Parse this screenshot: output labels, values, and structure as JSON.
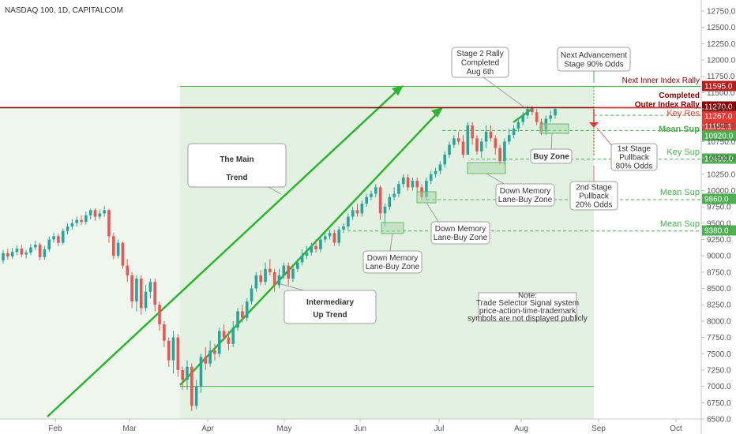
{
  "header": {
    "symbol": "NASDAQ 100, 1D, CAPITALCOM"
  },
  "chart_data": {
    "type": "candlestick",
    "title": "NASDAQ 100, 1D, CAPITALCOM",
    "ylim": [
      6500,
      12750
    ],
    "y_ticks": [
      "12750.0",
      "12500.0",
      "12250.0",
      "12000.0",
      "11750.0",
      "11500.0",
      "11250.0",
      "11000.0",
      "10750.0",
      "10500.0",
      "10250.0",
      "10000.0",
      "9750.0",
      "9500.0",
      "9250.0",
      "9000.0",
      "8750.0",
      "8500.0",
      "8250.0",
      "8000.0",
      "7750.0",
      "7500.0",
      "7250.0",
      "7000.0",
      "6750.0",
      "6500.0"
    ],
    "x_labels": [
      "Feb",
      "Mar",
      "Apr",
      "May",
      "Jun",
      "Jul",
      "Aug",
      "Sep",
      "Oct"
    ],
    "colors": {
      "up": "#26a69a",
      "down": "#ef5350",
      "trend": "#2db52d",
      "level": "#4caf50",
      "resistance": "#8b0000",
      "key_res": "#e53935"
    },
    "candles": [
      {
        "o": 8930,
        "c": 9040,
        "h": 9090,
        "l": 8880
      },
      {
        "o": 9040,
        "c": 8990,
        "h": 9110,
        "l": 8940
      },
      {
        "o": 8990,
        "c": 9060,
        "h": 9120,
        "l": 8950
      },
      {
        "o": 9060,
        "c": 9110,
        "h": 9160,
        "l": 9010
      },
      {
        "o": 9110,
        "c": 9020,
        "h": 9170,
        "l": 8980
      },
      {
        "o": 9020,
        "c": 9050,
        "h": 9090,
        "l": 8960
      },
      {
        "o": 9050,
        "c": 9130,
        "h": 9180,
        "l": 9010
      },
      {
        "o": 9130,
        "c": 9170,
        "h": 9230,
        "l": 9090
      },
      {
        "o": 9170,
        "c": 8980,
        "h": 9200,
        "l": 8930
      },
      {
        "o": 8980,
        "c": 9100,
        "h": 9150,
        "l": 8940
      },
      {
        "o": 9100,
        "c": 9250,
        "h": 9300,
        "l": 9060
      },
      {
        "o": 9250,
        "c": 9300,
        "h": 9350,
        "l": 9200
      },
      {
        "o": 9300,
        "c": 9200,
        "h": 9340,
        "l": 9150
      },
      {
        "o": 9200,
        "c": 9380,
        "h": 9420,
        "l": 9170
      },
      {
        "o": 9380,
        "c": 9450,
        "h": 9500,
        "l": 9330
      },
      {
        "o": 9450,
        "c": 9500,
        "h": 9560,
        "l": 9400
      },
      {
        "o": 9500,
        "c": 9550,
        "h": 9600,
        "l": 9450
      },
      {
        "o": 9550,
        "c": 9520,
        "h": 9620,
        "l": 9470
      },
      {
        "o": 9520,
        "c": 9620,
        "h": 9680,
        "l": 9480
      },
      {
        "o": 9620,
        "c": 9700,
        "h": 9720,
        "l": 9560
      },
      {
        "o": 9700,
        "c": 9600,
        "h": 9730,
        "l": 9540
      },
      {
        "o": 9600,
        "c": 9650,
        "h": 9710,
        "l": 9560
      },
      {
        "o": 9650,
        "c": 9700,
        "h": 9760,
        "l": 9600
      },
      {
        "o": 9700,
        "c": 9300,
        "h": 9720,
        "l": 9200
      },
      {
        "o": 9300,
        "c": 9000,
        "h": 9350,
        "l": 8950
      },
      {
        "o": 9000,
        "c": 9200,
        "h": 9250,
        "l": 8960
      },
      {
        "o": 9200,
        "c": 8850,
        "h": 9220,
        "l": 8800
      },
      {
        "o": 8850,
        "c": 8700,
        "h": 8950,
        "l": 8600
      },
      {
        "o": 8700,
        "c": 8300,
        "h": 8750,
        "l": 8200
      },
      {
        "o": 8300,
        "c": 8650,
        "h": 8700,
        "l": 8150
      },
      {
        "o": 8650,
        "c": 8200,
        "h": 8700,
        "l": 8100
      },
      {
        "o": 8200,
        "c": 8450,
        "h": 8550,
        "l": 8150
      },
      {
        "o": 8450,
        "c": 8600,
        "h": 8650,
        "l": 8350
      },
      {
        "o": 8600,
        "c": 8250,
        "h": 8650,
        "l": 8150
      },
      {
        "o": 8250,
        "c": 7950,
        "h": 8300,
        "l": 7850
      },
      {
        "o": 7950,
        "c": 7700,
        "h": 8000,
        "l": 7600
      },
      {
        "o": 7700,
        "c": 7400,
        "h": 7750,
        "l": 7300
      },
      {
        "o": 7400,
        "c": 7750,
        "h": 7850,
        "l": 7200
      },
      {
        "o": 7750,
        "c": 7250,
        "h": 7800,
        "l": 7150
      },
      {
        "o": 7250,
        "c": 7100,
        "h": 7300,
        "l": 6950
      },
      {
        "o": 7100,
        "c": 7300,
        "h": 7400,
        "l": 6950
      },
      {
        "o": 7300,
        "c": 6700,
        "h": 7350,
        "l": 6620
      },
      {
        "o": 6700,
        "c": 7000,
        "h": 7100,
        "l": 6650
      },
      {
        "o": 7000,
        "c": 7450,
        "h": 7500,
        "l": 6900
      },
      {
        "o": 7450,
        "c": 7350,
        "h": 7600,
        "l": 7250
      },
      {
        "o": 7350,
        "c": 7550,
        "h": 7700,
        "l": 7300
      },
      {
        "o": 7550,
        "c": 7500,
        "h": 7650,
        "l": 7400
      },
      {
        "o": 7500,
        "c": 7850,
        "h": 7900,
        "l": 7450
      },
      {
        "o": 7850,
        "c": 7750,
        "h": 7950,
        "l": 7700
      },
      {
        "o": 7750,
        "c": 7650,
        "h": 7850,
        "l": 7550
      },
      {
        "o": 7650,
        "c": 7900,
        "h": 8000,
        "l": 7600
      },
      {
        "o": 7900,
        "c": 8150,
        "h": 8200,
        "l": 7850
      },
      {
        "o": 8150,
        "c": 8050,
        "h": 8250,
        "l": 7980
      },
      {
        "o": 8050,
        "c": 8300,
        "h": 8350,
        "l": 8000
      },
      {
        "o": 8300,
        "c": 8500,
        "h": 8550,
        "l": 8250
      },
      {
        "o": 8500,
        "c": 8700,
        "h": 8750,
        "l": 8450
      },
      {
        "o": 8700,
        "c": 8600,
        "h": 8780,
        "l": 8550
      },
      {
        "o": 8600,
        "c": 8800,
        "h": 8900,
        "l": 8550
      },
      {
        "o": 8800,
        "c": 8750,
        "h": 8950,
        "l": 8700
      },
      {
        "o": 8750,
        "c": 8550,
        "h": 8800,
        "l": 8450
      },
      {
        "o": 8550,
        "c": 8700,
        "h": 8800,
        "l": 8500
      },
      {
        "o": 8700,
        "c": 8850,
        "h": 8900,
        "l": 8650
      },
      {
        "o": 8850,
        "c": 8650,
        "h": 8900,
        "l": 8550
      },
      {
        "o": 8650,
        "c": 8800,
        "h": 8850,
        "l": 8600
      },
      {
        "o": 8800,
        "c": 8900,
        "h": 8950,
        "l": 8750
      },
      {
        "o": 8900,
        "c": 9000,
        "h": 9100,
        "l": 8850
      },
      {
        "o": 9000,
        "c": 9050,
        "h": 9150,
        "l": 8950
      },
      {
        "o": 9050,
        "c": 9150,
        "h": 9200,
        "l": 9000
      },
      {
        "o": 9150,
        "c": 9100,
        "h": 9250,
        "l": 9050
      },
      {
        "o": 9100,
        "c": 9250,
        "h": 9300,
        "l": 9050
      },
      {
        "o": 9250,
        "c": 9300,
        "h": 9350,
        "l": 9200
      },
      {
        "o": 9300,
        "c": 9350,
        "h": 9400,
        "l": 9250
      },
      {
        "o": 9350,
        "c": 9200,
        "h": 9400,
        "l": 9150
      },
      {
        "o": 9200,
        "c": 9400,
        "h": 9450,
        "l": 9150
      },
      {
        "o": 9400,
        "c": 9450,
        "h": 9500,
        "l": 9350
      },
      {
        "o": 9450,
        "c": 9600,
        "h": 9650,
        "l": 9400
      },
      {
        "o": 9600,
        "c": 9700,
        "h": 9750,
        "l": 9550
      },
      {
        "o": 9700,
        "c": 9650,
        "h": 9800,
        "l": 9600
      },
      {
        "o": 9650,
        "c": 9800,
        "h": 9850,
        "l": 9600
      },
      {
        "o": 9800,
        "c": 9900,
        "h": 9950,
        "l": 9750
      },
      {
        "o": 9900,
        "c": 9950,
        "h": 10000,
        "l": 9850
      },
      {
        "o": 9950,
        "c": 10050,
        "h": 10100,
        "l": 9900
      },
      {
        "o": 10050,
        "c": 9650,
        "h": 10080,
        "l": 9550
      },
      {
        "o": 9650,
        "c": 9750,
        "h": 9800,
        "l": 9450
      },
      {
        "o": 9750,
        "c": 9900,
        "h": 9950,
        "l": 9700
      },
      {
        "o": 9900,
        "c": 9950,
        "h": 10050,
        "l": 9850
      },
      {
        "o": 9950,
        "c": 10100,
        "h": 10150,
        "l": 9900
      },
      {
        "o": 10100,
        "c": 10200,
        "h": 10250,
        "l": 10050
      },
      {
        "o": 10200,
        "c": 10050,
        "h": 10250,
        "l": 10000
      },
      {
        "o": 10050,
        "c": 10150,
        "h": 10200,
        "l": 10000
      },
      {
        "o": 10150,
        "c": 10050,
        "h": 10200,
        "l": 9950
      },
      {
        "o": 10050,
        "c": 9900,
        "h": 10100,
        "l": 9850
      },
      {
        "o": 9900,
        "c": 10150,
        "h": 10200,
        "l": 9850
      },
      {
        "o": 10150,
        "c": 10250,
        "h": 10300,
        "l": 10100
      },
      {
        "o": 10250,
        "c": 10300,
        "h": 10350,
        "l": 10200
      },
      {
        "o": 10300,
        "c": 10400,
        "h": 10450,
        "l": 10250
      },
      {
        "o": 10400,
        "c": 10550,
        "h": 10600,
        "l": 10350
      },
      {
        "o": 10550,
        "c": 10700,
        "h": 10750,
        "l": 10500
      },
      {
        "o": 10700,
        "c": 10800,
        "h": 10850,
        "l": 10650
      },
      {
        "o": 10800,
        "c": 10750,
        "h": 10900,
        "l": 10700
      },
      {
        "o": 10750,
        "c": 10550,
        "h": 10850,
        "l": 10500
      },
      {
        "o": 10550,
        "c": 11000,
        "h": 11050,
        "l": 10550
      },
      {
        "o": 11000,
        "c": 10800,
        "h": 11050,
        "l": 10700
      },
      {
        "o": 10800,
        "c": 10600,
        "h": 10850,
        "l": 10550
      },
      {
        "o": 10600,
        "c": 10750,
        "h": 10800,
        "l": 10500
      },
      {
        "o": 10750,
        "c": 10900,
        "h": 11000,
        "l": 10650
      },
      {
        "o": 10900,
        "c": 10800,
        "h": 11000,
        "l": 10750
      },
      {
        "o": 10800,
        "c": 10650,
        "h": 10850,
        "l": 10550
      },
      {
        "o": 10650,
        "c": 10450,
        "h": 10700,
        "l": 10400
      },
      {
        "o": 10450,
        "c": 10750,
        "h": 10800,
        "l": 10400
      },
      {
        "o": 10750,
        "c": 10850,
        "h": 10950,
        "l": 10700
      },
      {
        "o": 10850,
        "c": 10950,
        "h": 11000,
        "l": 10800
      },
      {
        "o": 10950,
        "c": 11050,
        "h": 11100,
        "l": 10900
      },
      {
        "o": 11050,
        "c": 11150,
        "h": 11200,
        "l": 11000
      },
      {
        "o": 11150,
        "c": 11250,
        "h": 11300,
        "l": 11100
      },
      {
        "o": 11250,
        "c": 11200,
        "h": 11300,
        "l": 11150
      },
      {
        "o": 11200,
        "c": 11050,
        "h": 11250,
        "l": 11000
      },
      {
        "o": 11050,
        "c": 10900,
        "h": 11100,
        "l": 10850
      },
      {
        "o": 10900,
        "c": 11100,
        "h": 11150,
        "l": 10850
      },
      {
        "o": 11100,
        "c": 11150,
        "h": 11230,
        "l": 11050
      },
      {
        "o": 11150,
        "c": 11250,
        "h": 11280,
        "l": 11100
      }
    ]
  },
  "levels": [
    {
      "name": "Next Inner Index Rally",
      "value": "11595.0"
    },
    {
      "name": "Completed Outer Index Rally",
      "value": "11270.0"
    },
    {
      "name": "Key Res",
      "value": "11267.0"
    },
    {
      "name": "Mean Sup",
      "value": "11152.1"
    },
    {
      "name": "Mean Sup",
      "value": "10920.0"
    },
    {
      "name": "Key Sup",
      "value": "10480.0"
    },
    {
      "name": "Mean Sup",
      "value": "9860.0"
    },
    {
      "name": "Mean Sup",
      "value": "9380.0"
    }
  ],
  "labels": {
    "main_trend": "The Main\nTrend",
    "intermediary": "Intermediary\nUp Trend",
    "stage2": "Stage 2 Rally\nCompleted\nAug 6th",
    "next_adv": "Next Advancement\nStage 90% Odds",
    "first_pullback": "1st Stage\nPullback\n80% Odds",
    "second_pullback": "2nd Stage\nPullback\n20% Odds",
    "buy_zone": "Buy Zone",
    "dm1": "Down Memory\nLane-Buy Zone",
    "dm2": "Down Memory\nLane-Buy Zone",
    "dm3": "Down Memory\nLane-Buy Zone",
    "note": "Note:\nTrade Selector Signal system\nprice-action-time-trademark\nsymbols are not displayed publicly"
  }
}
